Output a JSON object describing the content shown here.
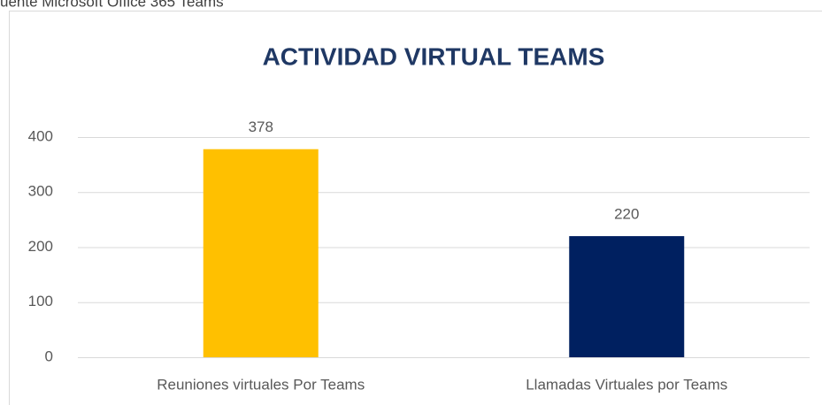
{
  "chart_data": {
    "type": "bar",
    "source": "uente Microsoft Office 365 Teams",
    "title": "ACTIVIDAD VIRTUAL TEAMS",
    "categories": [
      "Reuniones virtuales Por Teams",
      "Llamadas Virtuales por Teams"
    ],
    "values": [
      378,
      220
    ],
    "colors": [
      "#FFC000",
      "#002060"
    ],
    "ylim": [
      0,
      400
    ],
    "yticks": [
      0,
      100,
      200,
      300,
      400
    ],
    "grid": true
  }
}
